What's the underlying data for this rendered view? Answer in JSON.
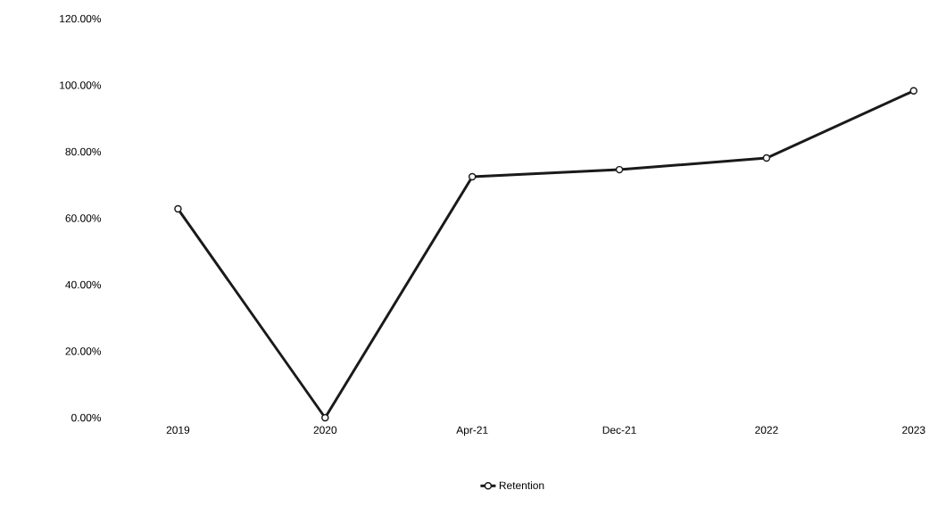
{
  "chart_data": {
    "type": "line",
    "categories": [
      "2019",
      "2020",
      "Apr-21",
      "Dec-21",
      "2022",
      "2023"
    ],
    "series": [
      {
        "name": "Retention",
        "color": "#1a1a1a",
        "values": [
          62.8,
          0,
          72.5,
          74.6,
          78.1,
          98.3
        ]
      }
    ],
    "ylim": [
      0,
      120
    ],
    "yticks": [
      {
        "value": 0,
        "label": "0.00%"
      },
      {
        "value": 20,
        "label": "20.00%"
      },
      {
        "value": 40,
        "label": "40.00%"
      },
      {
        "value": 60,
        "label": "60.00%"
      },
      {
        "value": 80,
        "label": "80.00%"
      },
      {
        "value": 100,
        "label": "100.00%"
      },
      {
        "value": 120,
        "label": "120.00%"
      }
    ],
    "grid": false,
    "legend": "bottom",
    "marker": "circle",
    "line_style": "solid"
  }
}
